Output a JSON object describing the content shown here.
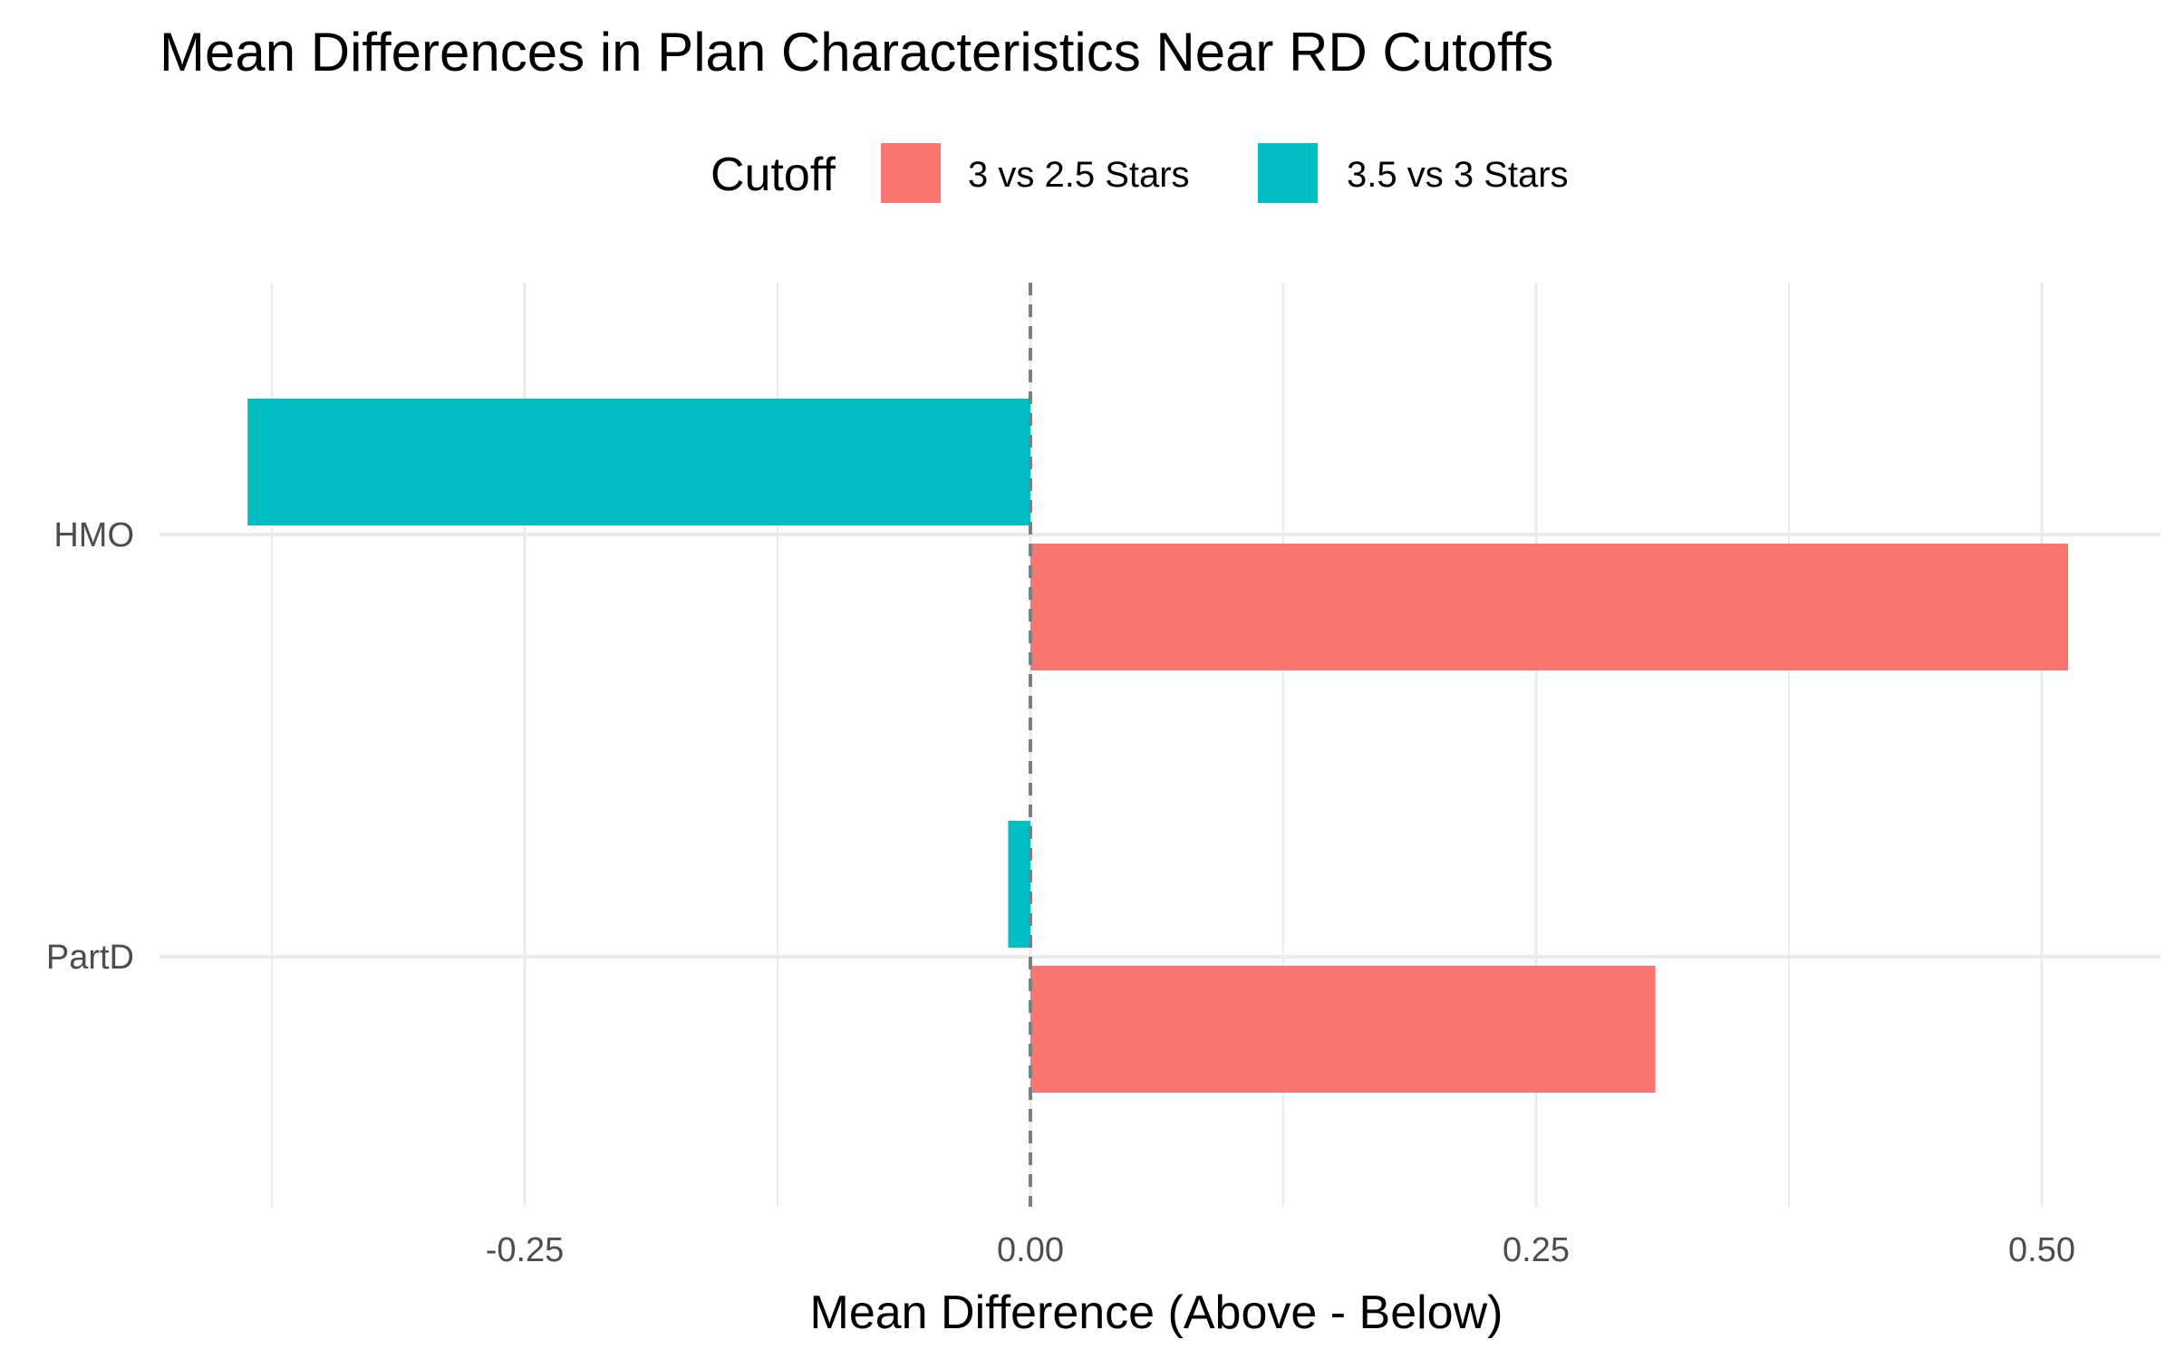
{
  "chart_data": {
    "type": "bar",
    "orientation": "horizontal",
    "title": "Mean Differences in Plan Characteristics Near RD Cutoffs",
    "xlabel": "Mean Difference (Above - Below)",
    "ylabel": "",
    "categories": [
      "HMO",
      "PartD"
    ],
    "legend": {
      "title": "Cutoff",
      "placement": "top"
    },
    "series": [
      {
        "name": "3 vs 2.5 Stars",
        "color": "#F8766D",
        "values": [
          0.513,
          0.309
        ]
      },
      {
        "name": "3.5 vs 3 Stars",
        "color": "#00BFC4",
        "values": [
          -0.387,
          -0.011
        ]
      }
    ],
    "xlim": [
      -0.43,
      0.56
    ],
    "xticks": [
      -0.25,
      0,
      0.25,
      0.5
    ],
    "xtick_labels": [
      "-0.25",
      "0.00",
      "0.25",
      "0.50"
    ],
    "reference_line": {
      "x": 0,
      "style": "dashed"
    },
    "grid": true
  }
}
